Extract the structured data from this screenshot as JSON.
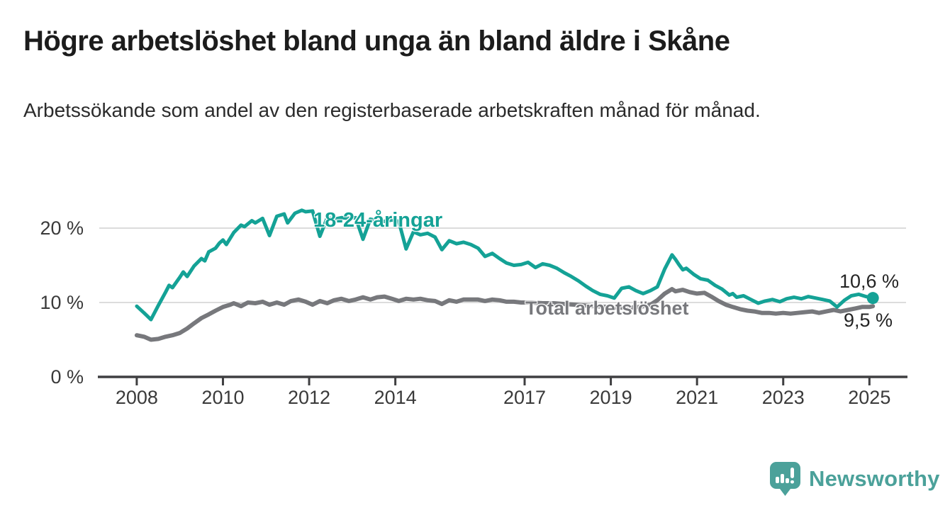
{
  "header": {
    "title": "Högre arbetslöshet bland unga än bland äldre i Skåne",
    "subtitle": "Arbetssökande som andel av den registerbaserade arbetskraften månad för månad."
  },
  "chart_data": {
    "type": "line",
    "title": "Högre arbetslöshet bland unga än bland äldre i Skåne",
    "ylabel": "Arbetssökande som andel av den registerbaserade arbetskraften",
    "unit": "%",
    "grid": true,
    "x_axis": {
      "range": [
        2007.13,
        2025.85
      ],
      "ticks": [
        2008,
        2010,
        2012,
        2014,
        2017,
        2019,
        2021,
        2023,
        2025
      ]
    },
    "y_axis": {
      "range": [
        0,
        23.52
      ],
      "ticks": [
        {
          "v": 0,
          "label": "0 %"
        },
        {
          "v": 10,
          "label": "10 %"
        },
        {
          "v": 20,
          "label": "20 %"
        }
      ]
    },
    "colors": {
      "grid": "#dcdcdc",
      "axis": "#3f3f41",
      "young": "#14a296",
      "total": "#77787c"
    },
    "series": [
      {
        "name": "18-24-åringar",
        "color": "#14a296",
        "line_width": 5,
        "end_label": "10,6 %",
        "end_value": 10.6,
        "end_dot": true,
        "points": [
          [
            2008.0,
            9.5
          ],
          [
            2008.17,
            8.6
          ],
          [
            2008.33,
            7.7
          ],
          [
            2008.5,
            9.6
          ],
          [
            2008.67,
            11.4
          ],
          [
            2008.75,
            12.3
          ],
          [
            2008.83,
            12.0
          ],
          [
            2009.0,
            13.4
          ],
          [
            2009.08,
            14.1
          ],
          [
            2009.17,
            13.5
          ],
          [
            2009.33,
            14.9
          ],
          [
            2009.5,
            15.9
          ],
          [
            2009.58,
            15.6
          ],
          [
            2009.67,
            16.8
          ],
          [
            2009.83,
            17.3
          ],
          [
            2009.92,
            18.0
          ],
          [
            2010.0,
            18.4
          ],
          [
            2010.08,
            17.8
          ],
          [
            2010.25,
            19.4
          ],
          [
            2010.42,
            20.4
          ],
          [
            2010.5,
            20.2
          ],
          [
            2010.67,
            21.0
          ],
          [
            2010.75,
            20.7
          ],
          [
            2010.92,
            21.3
          ],
          [
            2011.08,
            19.0
          ],
          [
            2011.25,
            21.6
          ],
          [
            2011.42,
            21.9
          ],
          [
            2011.5,
            20.7
          ],
          [
            2011.67,
            22.0
          ],
          [
            2011.83,
            22.4
          ],
          [
            2011.92,
            22.2
          ],
          [
            2012.08,
            22.3
          ],
          [
            2012.25,
            18.9
          ],
          [
            2012.42,
            21.4
          ],
          [
            2012.58,
            21.2
          ],
          [
            2012.75,
            21.4
          ],
          [
            2012.92,
            21.3
          ],
          [
            2013.08,
            21.4
          ],
          [
            2013.25,
            18.5
          ],
          [
            2013.42,
            21.2
          ],
          [
            2013.58,
            21.0
          ],
          [
            2013.75,
            20.9
          ],
          [
            2013.92,
            21.1
          ],
          [
            2014.08,
            20.9
          ],
          [
            2014.25,
            17.2
          ],
          [
            2014.42,
            19.5
          ],
          [
            2014.58,
            19.1
          ],
          [
            2014.75,
            19.3
          ],
          [
            2014.92,
            18.8
          ],
          [
            2015.08,
            17.1
          ],
          [
            2015.25,
            18.3
          ],
          [
            2015.42,
            17.9
          ],
          [
            2015.58,
            18.1
          ],
          [
            2015.75,
            17.8
          ],
          [
            2015.92,
            17.3
          ],
          [
            2016.08,
            16.2
          ],
          [
            2016.25,
            16.6
          ],
          [
            2016.42,
            15.9
          ],
          [
            2016.58,
            15.3
          ],
          [
            2016.75,
            15.0
          ],
          [
            2016.92,
            15.1
          ],
          [
            2017.08,
            15.4
          ],
          [
            2017.25,
            14.7
          ],
          [
            2017.42,
            15.2
          ],
          [
            2017.58,
            15.0
          ],
          [
            2017.75,
            14.6
          ],
          [
            2017.92,
            14.0
          ],
          [
            2018.08,
            13.5
          ],
          [
            2018.25,
            12.9
          ],
          [
            2018.42,
            12.2
          ],
          [
            2018.58,
            11.6
          ],
          [
            2018.75,
            11.1
          ],
          [
            2018.92,
            10.9
          ],
          [
            2019.08,
            10.6
          ],
          [
            2019.25,
            11.9
          ],
          [
            2019.42,
            12.1
          ],
          [
            2019.58,
            11.6
          ],
          [
            2019.75,
            11.2
          ],
          [
            2019.92,
            11.6
          ],
          [
            2020.08,
            12.1
          ],
          [
            2020.25,
            14.5
          ],
          [
            2020.42,
            16.4
          ],
          [
            2020.5,
            15.8
          ],
          [
            2020.58,
            15.1
          ],
          [
            2020.67,
            14.4
          ],
          [
            2020.75,
            14.6
          ],
          [
            2020.92,
            13.8
          ],
          [
            2021.08,
            13.2
          ],
          [
            2021.25,
            13.0
          ],
          [
            2021.42,
            12.3
          ],
          [
            2021.58,
            11.8
          ],
          [
            2021.75,
            11.0
          ],
          [
            2021.83,
            11.2
          ],
          [
            2021.92,
            10.7
          ],
          [
            2022.08,
            10.9
          ],
          [
            2022.25,
            10.4
          ],
          [
            2022.42,
            9.9
          ],
          [
            2022.58,
            10.2
          ],
          [
            2022.75,
            10.4
          ],
          [
            2022.92,
            10.1
          ],
          [
            2023.08,
            10.5
          ],
          [
            2023.25,
            10.7
          ],
          [
            2023.42,
            10.5
          ],
          [
            2023.58,
            10.8
          ],
          [
            2023.75,
            10.6
          ],
          [
            2023.92,
            10.4
          ],
          [
            2024.08,
            10.2
          ],
          [
            2024.25,
            9.4
          ],
          [
            2024.42,
            10.3
          ],
          [
            2024.58,
            10.9
          ],
          [
            2024.75,
            11.1
          ],
          [
            2024.92,
            10.8
          ],
          [
            2025.08,
            10.6
          ]
        ]
      },
      {
        "name": "Total arbetslöshet",
        "color": "#77787c",
        "line_width": 6,
        "end_label": "9,5 %",
        "end_value": 9.5,
        "end_dot": false,
        "points": [
          [
            2008.0,
            5.6
          ],
          [
            2008.17,
            5.4
          ],
          [
            2008.33,
            5.0
          ],
          [
            2008.5,
            5.1
          ],
          [
            2008.67,
            5.4
          ],
          [
            2008.83,
            5.6
          ],
          [
            2009.0,
            5.9
          ],
          [
            2009.17,
            6.5
          ],
          [
            2009.33,
            7.2
          ],
          [
            2009.5,
            7.9
          ],
          [
            2009.67,
            8.4
          ],
          [
            2009.83,
            8.9
          ],
          [
            2010.0,
            9.4
          ],
          [
            2010.17,
            9.7
          ],
          [
            2010.25,
            9.9
          ],
          [
            2010.42,
            9.5
          ],
          [
            2010.58,
            10.0
          ],
          [
            2010.75,
            9.9
          ],
          [
            2010.92,
            10.1
          ],
          [
            2011.08,
            9.7
          ],
          [
            2011.25,
            10.0
          ],
          [
            2011.42,
            9.7
          ],
          [
            2011.58,
            10.2
          ],
          [
            2011.75,
            10.4
          ],
          [
            2011.92,
            10.1
          ],
          [
            2012.08,
            9.7
          ],
          [
            2012.25,
            10.2
          ],
          [
            2012.42,
            9.9
          ],
          [
            2012.58,
            10.3
          ],
          [
            2012.75,
            10.5
          ],
          [
            2012.92,
            10.2
          ],
          [
            2013.08,
            10.4
          ],
          [
            2013.25,
            10.7
          ],
          [
            2013.42,
            10.4
          ],
          [
            2013.58,
            10.7
          ],
          [
            2013.75,
            10.8
          ],
          [
            2013.92,
            10.5
          ],
          [
            2014.08,
            10.2
          ],
          [
            2014.25,
            10.5
          ],
          [
            2014.42,
            10.4
          ],
          [
            2014.58,
            10.5
          ],
          [
            2014.75,
            10.3
          ],
          [
            2014.92,
            10.2
          ],
          [
            2015.08,
            9.8
          ],
          [
            2015.25,
            10.3
          ],
          [
            2015.42,
            10.1
          ],
          [
            2015.58,
            10.4
          ],
          [
            2015.75,
            10.4
          ],
          [
            2015.92,
            10.4
          ],
          [
            2016.08,
            10.2
          ],
          [
            2016.25,
            10.4
          ],
          [
            2016.42,
            10.3
          ],
          [
            2016.58,
            10.1
          ],
          [
            2016.75,
            10.1
          ],
          [
            2016.92,
            10.0
          ],
          [
            2017.17,
            10.0
          ],
          [
            2017.42,
            9.9
          ],
          [
            2017.67,
            9.9
          ],
          [
            2017.92,
            9.8
          ],
          [
            2018.17,
            9.7
          ],
          [
            2018.42,
            9.6
          ],
          [
            2018.67,
            9.5
          ],
          [
            2018.92,
            9.4
          ],
          [
            2019.17,
            9.3
          ],
          [
            2019.42,
            9.3
          ],
          [
            2019.67,
            9.4
          ],
          [
            2019.92,
            9.7
          ],
          [
            2020.08,
            10.3
          ],
          [
            2020.25,
            11.2
          ],
          [
            2020.42,
            11.8
          ],
          [
            2020.5,
            11.5
          ],
          [
            2020.67,
            11.7
          ],
          [
            2020.83,
            11.4
          ],
          [
            2021.0,
            11.2
          ],
          [
            2021.17,
            11.3
          ],
          [
            2021.33,
            10.8
          ],
          [
            2021.5,
            10.2
          ],
          [
            2021.67,
            9.7
          ],
          [
            2021.83,
            9.4
          ],
          [
            2022.0,
            9.1
          ],
          [
            2022.17,
            8.9
          ],
          [
            2022.33,
            8.8
          ],
          [
            2022.5,
            8.6
          ],
          [
            2022.67,
            8.6
          ],
          [
            2022.83,
            8.5
          ],
          [
            2023.0,
            8.6
          ],
          [
            2023.17,
            8.5
          ],
          [
            2023.33,
            8.6
          ],
          [
            2023.5,
            8.7
          ],
          [
            2023.67,
            8.8
          ],
          [
            2023.83,
            8.6
          ],
          [
            2024.0,
            8.8
          ],
          [
            2024.17,
            9.0
          ],
          [
            2024.33,
            8.8
          ],
          [
            2024.5,
            9.0
          ],
          [
            2024.67,
            9.2
          ],
          [
            2024.83,
            9.4
          ],
          [
            2025.0,
            9.4
          ],
          [
            2025.08,
            9.5
          ]
        ]
      }
    ]
  },
  "footer": {
    "brand": "Newsworthy"
  }
}
